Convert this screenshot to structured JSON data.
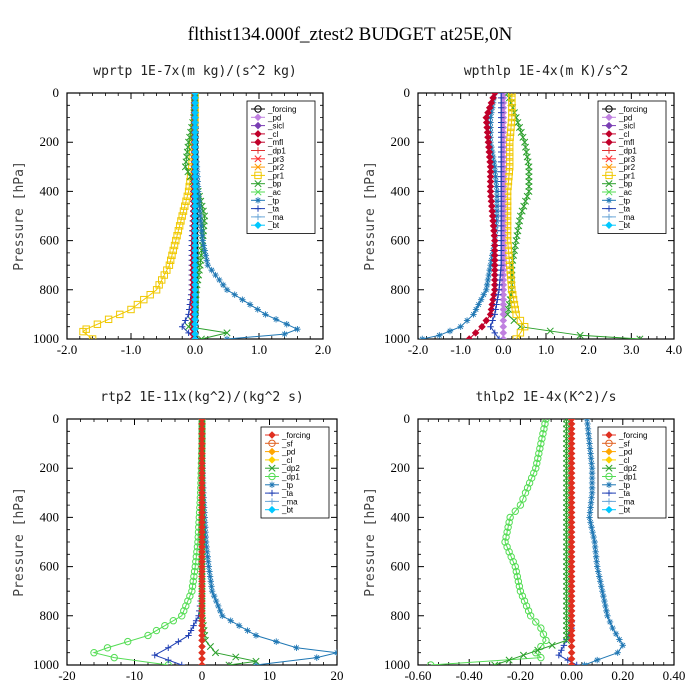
{
  "title": "flthist134.000f_ztest2  BUDGET at25E,0N",
  "chart_data": [
    {
      "type": "line",
      "title": "wprtp  1E-7x(m kg)/(s^2 kg)",
      "ylabel": "Pressure [hPa]",
      "xlim": [
        -2.0,
        2.0
      ],
      "ylim": [
        1000,
        0
      ],
      "xticks": [
        "-2.0",
        "-1.0",
        "0.0",
        "1.0",
        "2.0"
      ],
      "yticks": [
        "0",
        "200",
        "400",
        "600",
        "800",
        "1000"
      ],
      "legend": {
        "placement": "top-right",
        "entries": [
          "_forcing",
          "_pd",
          "_sicl",
          "_cl",
          "_mfl",
          "_dp1",
          "_pr3",
          "_pr2",
          "_pr1",
          "_bp",
          "_ac",
          "_tp",
          "_ta",
          "_ma",
          "_bt"
        ]
      },
      "series": [
        {
          "name": "_forcing",
          "color": "#000000",
          "marker": "circle",
          "x": [
            0,
            0,
            0,
            0,
            0,
            0,
            0,
            0,
            0,
            0,
            0,
            0
          ],
          "y": [
            0,
            100,
            200,
            300,
            400,
            500,
            600,
            700,
            800,
            900,
            950,
            1000
          ]
        },
        {
          "name": "_pr1",
          "color": "#f0c800",
          "marker": "square",
          "x": [
            0,
            0,
            -0.03,
            -0.05,
            -0.1,
            -0.2,
            -0.3,
            -0.4,
            -0.6,
            -1.0,
            -1.7,
            -1.75,
            -1.6
          ],
          "y": [
            0,
            100,
            200,
            300,
            400,
            500,
            600,
            700,
            800,
            880,
            960,
            970,
            1000
          ]
        },
        {
          "name": "_ac",
          "color": "#2ca02c",
          "marker": "x",
          "x": [
            0,
            -0.02,
            -0.1,
            -0.15,
            0.05,
            0.15,
            0.12,
            0.08,
            0.02,
            0,
            -0.1,
            0.5,
            0.1
          ],
          "y": [
            0,
            100,
            200,
            300,
            400,
            500,
            600,
            700,
            800,
            900,
            950,
            975,
            1000
          ]
        },
        {
          "name": "_tp",
          "color": "#1f77b4",
          "marker": "star",
          "x": [
            0,
            0,
            0,
            0.03,
            0.05,
            0.08,
            0.12,
            0.2,
            0.5,
            1.1,
            1.6,
            1.4,
            0.5
          ],
          "y": [
            0,
            100,
            200,
            300,
            400,
            500,
            600,
            700,
            800,
            900,
            960,
            980,
            1000
          ]
        },
        {
          "name": "_ta",
          "color": "#1f3fb4",
          "marker": "plus",
          "x": [
            0,
            0,
            0,
            0,
            -0.02,
            -0.03,
            -0.05,
            -0.05,
            -0.05,
            -0.1,
            -0.2,
            0
          ],
          "y": [
            0,
            100,
            200,
            300,
            400,
            500,
            600,
            700,
            800,
            900,
            950,
            1000
          ]
        },
        {
          "name": "_mfl",
          "color": "#c0002a",
          "marker": "diamond",
          "x": [
            -0.01,
            -0.01,
            -0.01,
            -0.01,
            -0.02,
            -0.02,
            -0.02,
            -0.03,
            -0.03,
            -0.03,
            -0.03
          ],
          "y": [
            0,
            100,
            200,
            300,
            400,
            500,
            600,
            700,
            800,
            900,
            1000
          ]
        },
        {
          "name": "_bt",
          "color": "#00c8ff",
          "marker": "diamond",
          "x": [
            0,
            0,
            0,
            0,
            0,
            0,
            0,
            0,
            0,
            0,
            0
          ],
          "y": [
            0,
            100,
            200,
            300,
            400,
            500,
            600,
            700,
            800,
            900,
            1000
          ]
        }
      ]
    },
    {
      "type": "line",
      "title": "wpthlp  1E-4x(m K)/s^2",
      "ylabel": "Pressure [hPa]",
      "xlim": [
        -2.0,
        4.0
      ],
      "ylim": [
        1000,
        0
      ],
      "xticks": [
        "-2.0",
        "-1.0",
        "0.0",
        "1.0",
        "2.0",
        "3.0",
        "4.0"
      ],
      "yticks": [
        "0",
        "200",
        "400",
        "600",
        "800",
        "1000"
      ],
      "legend": {
        "placement": "top-right",
        "entries": [
          "_forcing",
          "_pd",
          "_sicl",
          "_cl",
          "_mfl",
          "_dp1",
          "_pr3",
          "_pr2",
          "_pr1",
          "_bp",
          "_ac",
          "_tp",
          "_ta",
          "_ma",
          "_bt"
        ]
      },
      "series": [
        {
          "name": "_ac",
          "color": "#2ca02c",
          "marker": "x",
          "x": [
            0.1,
            0.3,
            0.5,
            0.6,
            0.6,
            0.4,
            0.3,
            0.2,
            0.2,
            0.1,
            0.4,
            1.8,
            3.2
          ],
          "y": [
            0,
            100,
            200,
            300,
            400,
            500,
            600,
            700,
            800,
            900,
            950,
            985,
            1000
          ]
        },
        {
          "name": "_tp",
          "color": "#1f77b4",
          "marker": "star",
          "x": [
            -0.2,
            -0.3,
            -0.3,
            -0.2,
            -0.15,
            -0.15,
            -0.2,
            -0.3,
            -0.4,
            -0.7,
            -1.0,
            -1.5,
            -1.9
          ],
          "y": [
            0,
            100,
            200,
            300,
            400,
            500,
            600,
            700,
            800,
            900,
            950,
            985,
            1000
          ]
        },
        {
          "name": "_mfl",
          "color": "#c0002a",
          "marker": "diamond",
          "x": [
            -0.2,
            -0.4,
            -0.35,
            -0.3,
            -0.3,
            -0.25,
            -0.2,
            -0.2,
            -0.2,
            -0.3,
            -0.5,
            -0.8
          ],
          "y": [
            0,
            100,
            200,
            300,
            400,
            500,
            600,
            700,
            800,
            900,
            950,
            1000
          ]
        },
        {
          "name": "_pr1",
          "color": "#f0c800",
          "marker": "square",
          "x": [
            0.2,
            0.2,
            0.15,
            0.15,
            0.1,
            0.1,
            0.1,
            0.15,
            0.2,
            0.3,
            0.5,
            0.3
          ],
          "y": [
            0,
            100,
            200,
            300,
            400,
            500,
            600,
            700,
            800,
            900,
            950,
            1000
          ]
        },
        {
          "name": "_pd",
          "color": "#c080e0",
          "marker": "diamond",
          "x": [
            0,
            0,
            0,
            0,
            0,
            0,
            0,
            0,
            0,
            0,
            0,
            0
          ],
          "y": [
            0,
            100,
            200,
            300,
            400,
            500,
            600,
            700,
            800,
            900,
            950,
            1000
          ]
        },
        {
          "name": "_ta",
          "color": "#1f3fb4",
          "marker": "plus",
          "x": [
            -0.05,
            -0.05,
            -0.05,
            -0.05,
            -0.05,
            -0.05,
            -0.05,
            -0.05,
            -0.1,
            -0.2,
            -0.3,
            -0.1
          ],
          "y": [
            0,
            100,
            200,
            300,
            400,
            500,
            600,
            700,
            800,
            900,
            950,
            1000
          ]
        }
      ]
    },
    {
      "type": "line",
      "title": "rtp2  1E-11x(kg^2)/(kg^2 s)",
      "ylabel": "Pressure [hPa]",
      "xlim": [
        -20,
        20
      ],
      "ylim": [
        1000,
        0
      ],
      "xticks": [
        "-20",
        "-10",
        "0",
        "10",
        "20"
      ],
      "yticks": [
        "0",
        "200",
        "400",
        "600",
        "800",
        "1000"
      ],
      "legend": {
        "placement": "top-right",
        "entries": [
          "_forcing",
          "_sf",
          "_pd",
          "_cl",
          "_dp2",
          "_dp1",
          "_tp",
          "_ta",
          "_ma",
          "_bt"
        ]
      },
      "series": [
        {
          "name": "_dp1",
          "color": "#55dd55",
          "marker": "circle",
          "x": [
            0,
            0,
            -0.1,
            -0.2,
            -0.4,
            -0.6,
            -1.0,
            -1.5,
            -3,
            -8,
            -14,
            -16,
            -13,
            -5
          ],
          "y": [
            0,
            100,
            200,
            300,
            400,
            500,
            600,
            700,
            800,
            880,
            930,
            950,
            970,
            1000
          ]
        },
        {
          "name": "_tp",
          "color": "#1f77b4",
          "marker": "star",
          "x": [
            0,
            0,
            0.1,
            0.2,
            0.4,
            0.6,
            1.0,
            1.5,
            3,
            8,
            14,
            20,
            17,
            8
          ],
          "y": [
            0,
            100,
            200,
            300,
            400,
            500,
            600,
            700,
            800,
            880,
            930,
            950,
            970,
            1000
          ]
        },
        {
          "name": "_ta",
          "color": "#1f3fb4",
          "marker": "plus",
          "x": [
            0,
            0,
            0,
            0,
            0,
            0,
            0,
            0,
            -0.5,
            -2,
            -5,
            -7,
            -3
          ],
          "y": [
            0,
            100,
            200,
            300,
            400,
            500,
            600,
            700,
            800,
            880,
            930,
            960,
            1000
          ]
        },
        {
          "name": "_dp2",
          "color": "#2ca02c",
          "marker": "x",
          "x": [
            0,
            0,
            0,
            0,
            0,
            0,
            0,
            0,
            0,
            0.5,
            2,
            8,
            4
          ],
          "y": [
            0,
            100,
            200,
            300,
            400,
            500,
            600,
            700,
            800,
            900,
            950,
            985,
            1000
          ]
        },
        {
          "name": "_forcing",
          "color": "#e03020",
          "marker": "diamond",
          "x": [
            0,
            0,
            0,
            0,
            0,
            0,
            0,
            0,
            0,
            0,
            0,
            0,
            0
          ],
          "y": [
            0,
            100,
            200,
            300,
            400,
            500,
            600,
            700,
            800,
            900,
            950,
            975,
            1000
          ]
        }
      ]
    },
    {
      "type": "line",
      "title": "thlp2  1E-4x(K^2)/s",
      "ylabel": "Pressure [hPa]",
      "xlim": [
        -0.6,
        0.4
      ],
      "ylim": [
        1000,
        0
      ],
      "xticks": [
        "-0.60",
        "-0.40",
        "-0.20",
        "0.00",
        "0.20",
        "0.40"
      ],
      "yticks": [
        "0",
        "200",
        "400",
        "600",
        "800",
        "1000"
      ],
      "legend": {
        "placement": "top-right",
        "entries": [
          "_forcing",
          "_sf",
          "_pd",
          "_cl",
          "_dp2",
          "_dp1",
          "_tp",
          "_ta",
          "_ma",
          "_bt"
        ]
      },
      "series": [
        {
          "name": "_dp1",
          "color": "#55dd55",
          "marker": "circle",
          "x": [
            -0.1,
            -0.12,
            -0.14,
            -0.18,
            -0.2,
            -0.24,
            -0.26,
            -0.22,
            -0.2,
            -0.16,
            -0.12,
            -0.1,
            -0.14,
            -0.12,
            -0.55
          ],
          "y": [
            0,
            100,
            200,
            300,
            350,
            400,
            500,
            600,
            700,
            800,
            850,
            900,
            950,
            970,
            1000
          ]
        },
        {
          "name": "_tp",
          "color": "#1f77b4",
          "marker": "star",
          "x": [
            0.06,
            0.07,
            0.08,
            0.08,
            0.07,
            0.09,
            0.1,
            0.12,
            0.14,
            0.16,
            0.2,
            0.18,
            0.1,
            0.05
          ],
          "y": [
            0,
            100,
            200,
            300,
            400,
            500,
            600,
            700,
            800,
            850,
            920,
            950,
            980,
            1000
          ]
        },
        {
          "name": "_ta",
          "color": "#1f3fb4",
          "marker": "plus",
          "x": [
            0,
            0,
            0,
            0,
            0,
            0,
            0,
            0,
            0,
            0,
            -0.03,
            -0.05,
            0.02
          ],
          "y": [
            0,
            100,
            200,
            300,
            400,
            500,
            600,
            700,
            800,
            850,
            920,
            960,
            1000
          ]
        },
        {
          "name": "_dp2",
          "color": "#2ca02c",
          "marker": "x",
          "x": [
            -0.02,
            -0.02,
            -0.02,
            -0.02,
            -0.02,
            -0.02,
            -0.02,
            -0.02,
            -0.02,
            -0.02,
            -0.3
          ],
          "y": [
            0,
            100,
            200,
            300,
            400,
            500,
            600,
            700,
            800,
            900,
            1000
          ]
        },
        {
          "name": "_forcing",
          "color": "#e03020",
          "marker": "diamond",
          "x": [
            0,
            0,
            0,
            0,
            0,
            0,
            0,
            0,
            0,
            0,
            0,
            0
          ],
          "y": [
            0,
            100,
            200,
            300,
            400,
            500,
            600,
            700,
            800,
            900,
            950,
            1000
          ]
        }
      ]
    }
  ]
}
